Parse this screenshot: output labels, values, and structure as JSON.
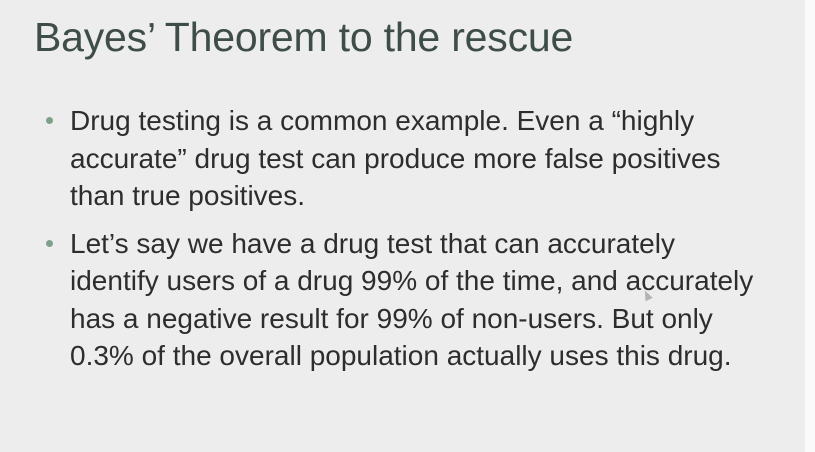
{
  "slide": {
    "title": "Bayes’ Theorem to the rescue",
    "bullets": [
      {
        "text": "Drug testing is a common example. Even a “highly accurate” drug test can produce more false positives than true positives."
      },
      {
        "text": "Let’s say we have a drug test that can accurately identify users of a drug 99% of the time, and accurately has a negative result for 99% of non-users. But only 0.3% of the overall population actually uses this drug."
      }
    ],
    "colors": {
      "background": "#ededed",
      "title": "#3f4d49",
      "text": "#2d2d2d",
      "bullet": "#7fa08a"
    }
  }
}
